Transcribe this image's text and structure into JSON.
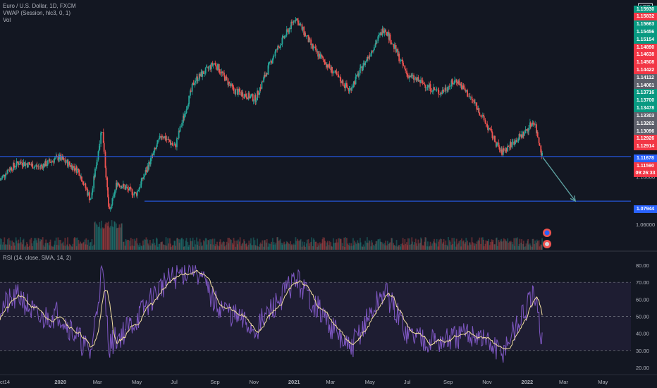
{
  "main_legend": {
    "symbol": "Euro / U.S. Dollar, 1D, FXCM",
    "indicator_vwap": "VWAP (Session, hlc3, 0, 1)",
    "indicator_vol": "Vol"
  },
  "rsi_legend": "RSI (14, close, SMA, 14, 2)",
  "currency_button": "USD",
  "colors": {
    "background": "#131722",
    "up": "#26a69a",
    "down": "#ef5350",
    "grid": "#1e222d",
    "hline": "#2962ff",
    "rsi": "#7e57c2",
    "rsi_ma": "#f3e0a0",
    "arrow": "#5fa3a3"
  },
  "price_axis": {
    "ticks": [
      "1.10000",
      "1.06000"
    ]
  },
  "price_tags": [
    {
      "text": "1.15930",
      "color": "#089981"
    },
    {
      "text": "1.15832",
      "color": "#f23645"
    },
    {
      "text": "1.15663",
      "color": "#089981"
    },
    {
      "text": "1.15456",
      "color": "#089981"
    },
    {
      "text": "1.15154",
      "color": "#089981"
    },
    {
      "text": "1.14890",
      "color": "#f23645"
    },
    {
      "text": "1.14638",
      "color": "#f23645"
    },
    {
      "text": "1.14508",
      "color": "#f23645"
    },
    {
      "text": "1.14422",
      "color": "#f23645"
    },
    {
      "text": "1.14112",
      "color": "#5d606b"
    },
    {
      "text": "1.14061",
      "color": "#5d606b"
    },
    {
      "text": "1.13716",
      "color": "#089981"
    },
    {
      "text": "1.13700",
      "color": "#089981"
    },
    {
      "text": "1.13478",
      "color": "#089981"
    },
    {
      "text": "1.13303",
      "color": "#5d606b"
    },
    {
      "text": "1.13202",
      "color": "#5d606b"
    },
    {
      "text": "1.13096",
      "color": "#5d606b"
    },
    {
      "text": "1.12926",
      "color": "#f23645"
    },
    {
      "text": "1.12914",
      "color": "#f23645"
    },
    {
      "text": "1.11678",
      "color": "#2962ff"
    },
    {
      "text": "1.11590",
      "color": "#f23645"
    },
    {
      "text": "09:26:33",
      "color": "#f23645"
    },
    {
      "text": "1.07944",
      "color": "#2962ff"
    }
  ],
  "rsi_axis": {
    "ticks": [
      "80.00",
      "70.00",
      "60.00",
      "50.00",
      "40.00",
      "30.00",
      "20.00"
    ]
  },
  "time_axis": [
    "ct",
    "14",
    "2020",
    "Mar",
    "May",
    "Jul",
    "Sep",
    "Nov",
    "2021",
    "Mar",
    "May",
    "Jul",
    "Sep",
    "Nov",
    "2022",
    "Mar",
    "May"
  ],
  "chart_data": {
    "type": "candlestick",
    "symbol": "EURUSD",
    "timeframe": "1D",
    "price_range": [
      1.04,
      1.23
    ],
    "price_series": [
      [
        "2019-10-01",
        1.097
      ],
      [
        "2019-10-14",
        1.106
      ],
      [
        "2019-11-01",
        1.112
      ],
      [
        "2019-12-01",
        1.108
      ],
      [
        "2020-01-01",
        1.116
      ],
      [
        "2020-02-01",
        1.105
      ],
      [
        "2020-02-20",
        1.08
      ],
      [
        "2020-03-09",
        1.143
      ],
      [
        "2020-03-20",
        1.068
      ],
      [
        "2020-04-01",
        1.095
      ],
      [
        "2020-05-01",
        1.085
      ],
      [
        "2020-06-10",
        1.135
      ],
      [
        "2020-07-01",
        1.125
      ],
      [
        "2020-07-31",
        1.18
      ],
      [
        "2020-09-01",
        1.195
      ],
      [
        "2020-10-01",
        1.172
      ],
      [
        "2020-11-04",
        1.165
      ],
      [
        "2020-12-01",
        1.2
      ],
      [
        "2021-01-06",
        1.233
      ],
      [
        "2021-02-01",
        1.208
      ],
      [
        "2021-03-31",
        1.172
      ],
      [
        "2021-05-25",
        1.225
      ],
      [
        "2021-06-30",
        1.185
      ],
      [
        "2021-08-20",
        1.17
      ],
      [
        "2021-09-15",
        1.181
      ],
      [
        "2021-10-15",
        1.16
      ],
      [
        "2021-11-24",
        1.12
      ],
      [
        "2021-12-31",
        1.137
      ],
      [
        "2022-01-14",
        1.147
      ],
      [
        "2022-01-28",
        1.116
      ]
    ],
    "horizontal_levels": [
      1.11678,
      1.07944
    ],
    "projection_arrow": {
      "from": [
        "2022-01-28",
        1.116
      ],
      "to": [
        "2022-03-20",
        1.0795
      ]
    },
    "rsi": {
      "range": [
        20,
        80
      ],
      "bands": [
        30,
        50,
        70
      ],
      "series": [
        [
          "2019-10-01",
          55
        ],
        [
          "2019-11-01",
          62
        ],
        [
          "2019-12-01",
          48
        ],
        [
          "2020-01-01",
          52
        ],
        [
          "2020-02-20",
          28
        ],
        [
          "2020-03-09",
          78
        ],
        [
          "2020-03-20",
          33
        ],
        [
          "2020-05-01",
          48
        ],
        [
          "2020-06-10",
          68
        ],
        [
          "2020-07-31",
          80
        ],
        [
          "2020-09-01",
          58
        ],
        [
          "2020-11-04",
          42
        ],
        [
          "2021-01-06",
          72
        ],
        [
          "2021-03-31",
          30
        ],
        [
          "2021-05-25",
          65
        ],
        [
          "2021-06-30",
          40
        ],
        [
          "2021-08-20",
          35
        ],
        [
          "2021-10-15",
          40
        ],
        [
          "2021-11-24",
          28
        ],
        [
          "2022-01-14",
          62
        ],
        [
          "2022-01-28",
          35
        ]
      ]
    }
  }
}
